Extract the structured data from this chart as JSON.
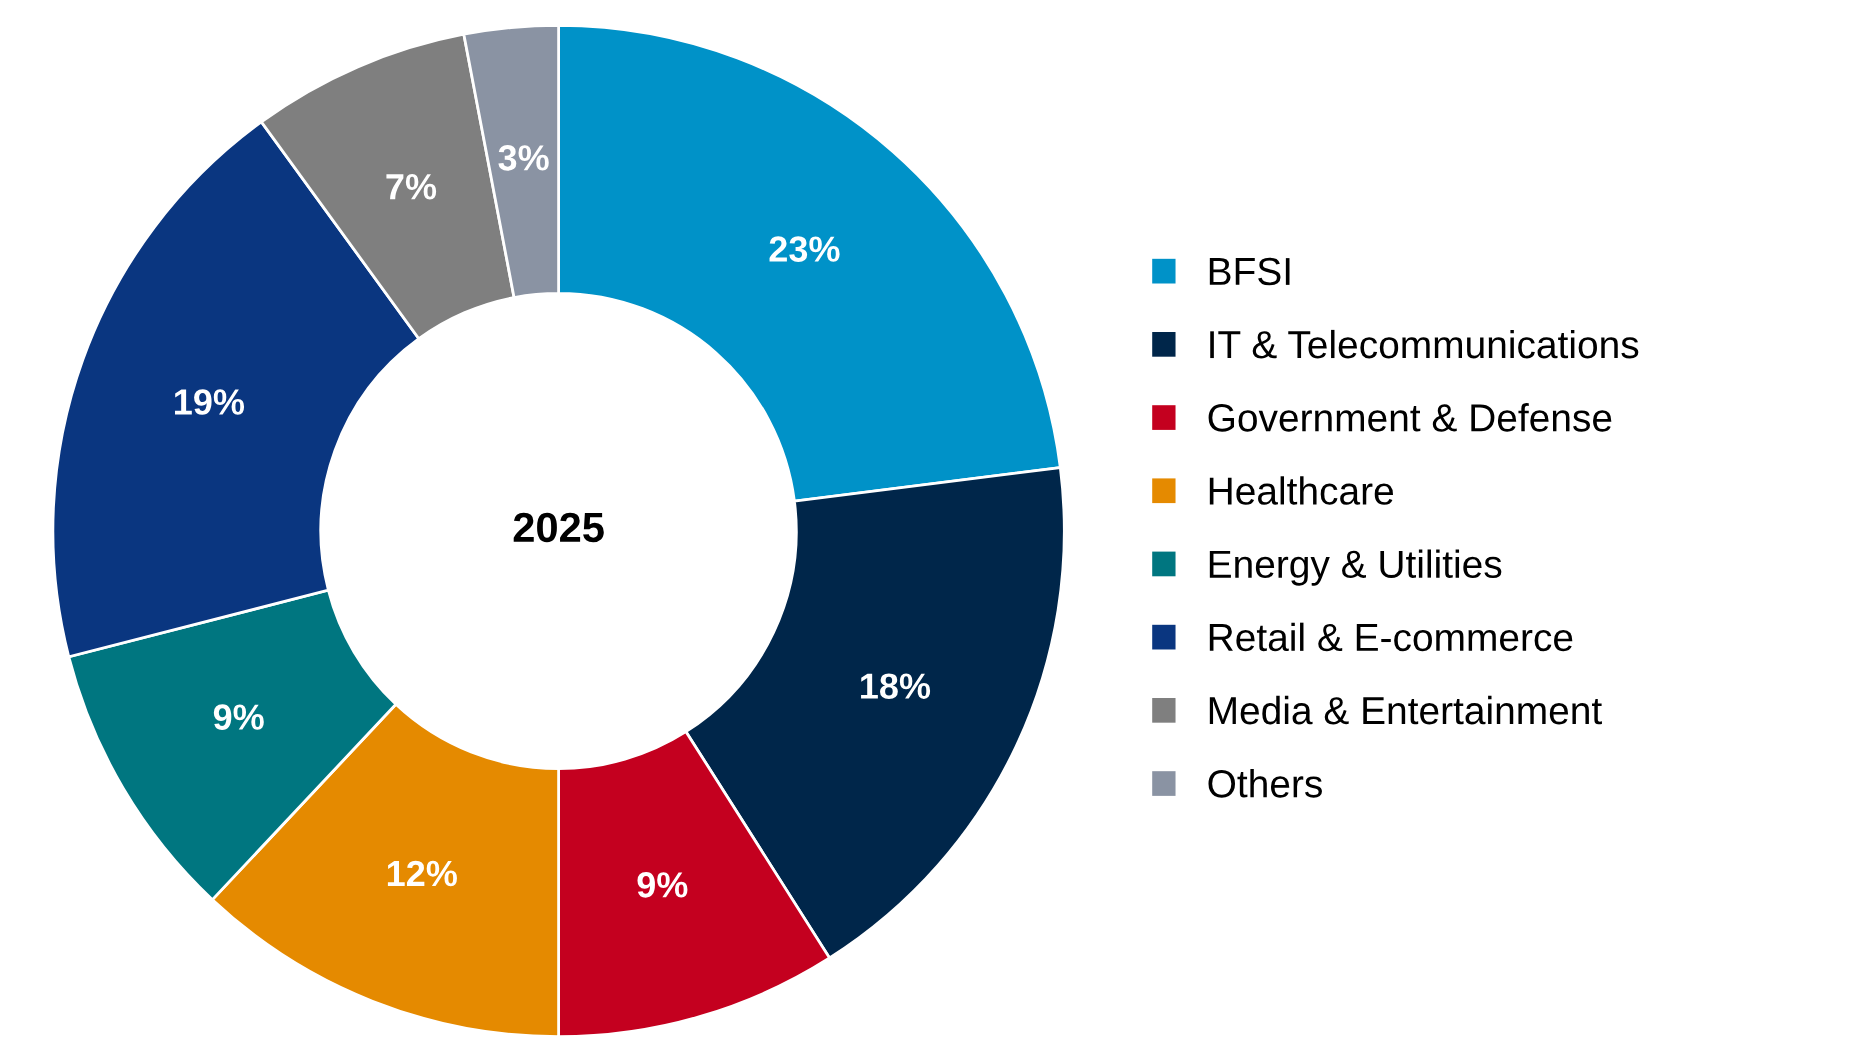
{
  "chart_data": {
    "type": "donut",
    "title": "2025",
    "categories": [
      "BFSI",
      "IT & Telecommunications",
      "Government & Defense",
      "Healthcare",
      "Energy & Utilities",
      "Retail & E-commerce",
      "Media & Entertainment",
      "Others"
    ],
    "values": [
      23,
      18,
      9,
      12,
      9,
      19,
      7,
      3
    ],
    "colors": [
      "#0092c8",
      "#00264a",
      "#c4001f",
      "#e58a00",
      "#007680",
      "#0a3680",
      "#7f7f7f",
      "#8a93a3"
    ],
    "value_labels": [
      "23%",
      "18%",
      "9%",
      "12%",
      "9%",
      "19%",
      "7%",
      "3%"
    ],
    "legend": "right"
  }
}
